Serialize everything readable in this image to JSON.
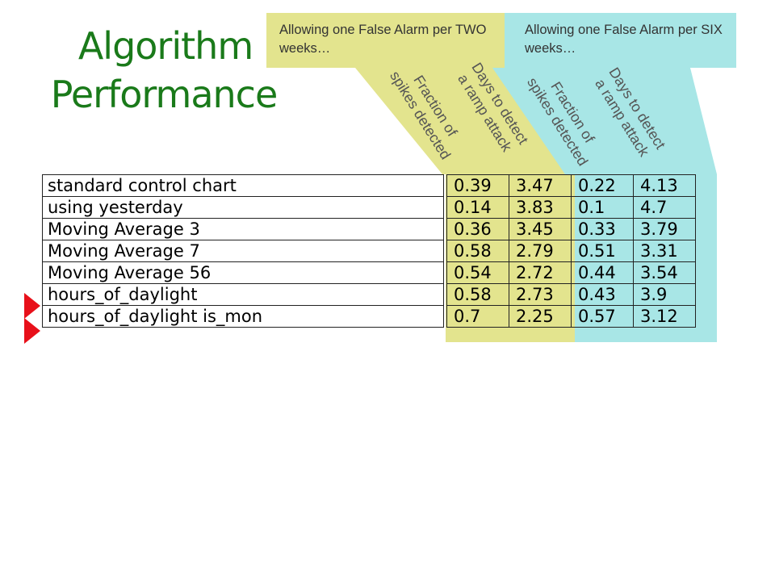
{
  "title": [
    "Algorithm",
    "Performance"
  ],
  "groups": [
    {
      "label": "Allowing one False Alarm per TWO weeks…",
      "color": "#e3e48e"
    },
    {
      "label": "Allowing one False Alarm per SIX weeks…",
      "color": "#a8e6e6"
    }
  ],
  "column_headers": [
    [
      "Fraction of",
      "spikes detected"
    ],
    [
      "Days to detect",
      "a ramp attack"
    ],
    [
      "Fraction of",
      "spikes detected"
    ],
    [
      "Days to detect",
      "a ramp attack"
    ]
  ],
  "rows": [
    {
      "name": "standard control chart",
      "values": [
        "0.39",
        "3.47",
        "0.22",
        "4.13"
      ],
      "highlighted": false
    },
    {
      "name": "using yesterday",
      "values": [
        "0.14",
        "3.83",
        "0.1",
        "4.7"
      ],
      "highlighted": false
    },
    {
      "name": "Moving Average 3",
      "values": [
        "0.36",
        "3.45",
        "0.33",
        "3.79"
      ],
      "highlighted": false
    },
    {
      "name": "Moving Average 7",
      "values": [
        "0.58",
        "2.79",
        "0.51",
        "3.31"
      ],
      "highlighted": false
    },
    {
      "name": "Moving Average 56",
      "values": [
        "0.54",
        "2.72",
        "0.44",
        "3.54"
      ],
      "highlighted": false
    },
    {
      "name": "hours_of_daylight",
      "values": [
        "0.58",
        "2.73",
        "0.43",
        "3.9"
      ],
      "highlighted": true
    },
    {
      "name": "hours_of_daylight is_mon",
      "values": [
        "0.7",
        "2.25",
        "0.57",
        "3.12"
      ],
      "highlighted": true
    }
  ],
  "colors": {
    "title": "#1a7a1a",
    "arrow": "#e8101a",
    "yellow_band": "#e3e48e",
    "cyan_band": "#a8e6e6"
  }
}
